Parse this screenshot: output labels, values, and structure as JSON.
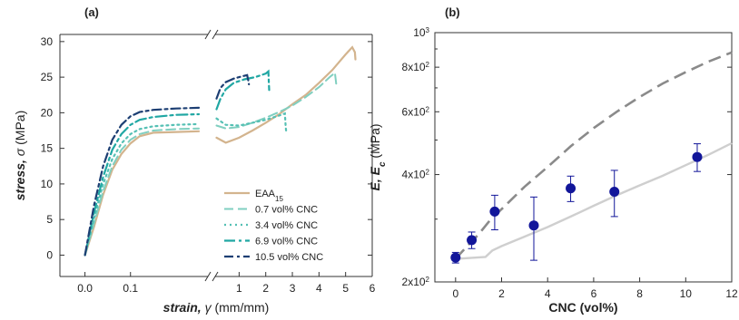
{
  "chart_data": [
    {
      "type": "line",
      "panel_label": "(a)",
      "ylabel_parts": [
        "stress, ",
        "σ",
        " (MPa)"
      ],
      "xlabel_parts": [
        "strain, ",
        "γ",
        " (mm/mm)"
      ],
      "ylim": [
        -3,
        31
      ],
      "yticks": [
        "0",
        "5",
        "10",
        "15",
        "20",
        "25",
        "30"
      ],
      "x_broken_axis": true,
      "xlim_left": [
        -0.055,
        0.27
      ],
      "xticks_left": [
        "0.0",
        "0.1"
      ],
      "xlim_right": [
        0.1,
        6
      ],
      "xticks_right": [
        "1",
        "2",
        "3",
        "4",
        "5",
        "6"
      ],
      "legend_position": "bottom-right",
      "colors": {
        "EAA": "#d3b48e",
        "c07": "#80cfc0",
        "c34": "#55c0b4",
        "c69": "#20a7a3",
        "c105": "#1d3f73"
      },
      "series": [
        {
          "name": "EAA",
          "name_sub": "15",
          "color_key": "EAA",
          "dash": "",
          "width": 2.2,
          "left": [
            [
              0.0,
              0
            ],
            [
              0.02,
              4
            ],
            [
              0.04,
              8.5
            ],
            [
              0.06,
              12
            ],
            [
              0.08,
              14.2
            ],
            [
              0.1,
              15.7
            ],
            [
              0.12,
              16.7
            ],
            [
              0.15,
              17.2
            ],
            [
              0.2,
              17.3
            ],
            [
              0.25,
              17.4
            ]
          ],
          "right": [
            [
              0.15,
              16.5
            ],
            [
              0.5,
              15.8
            ],
            [
              1.0,
              16.5
            ],
            [
              1.5,
              17.5
            ],
            [
              2.0,
              18.6
            ],
            [
              2.5,
              19.8
            ],
            [
              3.0,
              21.2
            ],
            [
              3.5,
              22.5
            ],
            [
              4.0,
              24.2
            ],
            [
              4.5,
              26.0
            ],
            [
              5.0,
              28.2
            ],
            [
              5.25,
              29.2
            ],
            [
              5.35,
              28.5
            ],
            [
              5.37,
              27.5
            ]
          ]
        },
        {
          "name": "0.7 vol% CNC",
          "color_key": "c07",
          "dash": "10,5",
          "width": 2,
          "left": [
            [
              0.0,
              0
            ],
            [
              0.02,
              4.5
            ],
            [
              0.04,
              9
            ],
            [
              0.06,
              12.5
            ],
            [
              0.08,
              14.8
            ],
            [
              0.1,
              16.2
            ],
            [
              0.12,
              17.0
            ],
            [
              0.15,
              17.5
            ],
            [
              0.2,
              17.7
            ],
            [
              0.25,
              17.8
            ]
          ],
          "right": [
            [
              0.15,
              18.2
            ],
            [
              0.5,
              17.8
            ],
            [
              1.0,
              18.0
            ],
            [
              1.5,
              18.6
            ],
            [
              2.0,
              19.3
            ],
            [
              2.5,
              20.1
            ],
            [
              3.0,
              21.0
            ],
            [
              3.5,
              22.2
            ],
            [
              4.0,
              23.6
            ],
            [
              4.4,
              25.0
            ],
            [
              4.6,
              25.6
            ],
            [
              4.65,
              24.0
            ],
            [
              4.67,
              23.5
            ]
          ]
        },
        {
          "name": "3.4 vol% CNC",
          "color_key": "c34",
          "dash": "2,4",
          "width": 2.2,
          "left": [
            [
              0.0,
              0
            ],
            [
              0.02,
              5.2
            ],
            [
              0.04,
              10
            ],
            [
              0.06,
              13.5
            ],
            [
              0.08,
              15.7
            ],
            [
              0.1,
              17.0
            ],
            [
              0.12,
              17.7
            ],
            [
              0.15,
              18.1
            ],
            [
              0.2,
              18.3
            ],
            [
              0.25,
              18.4
            ]
          ],
          "right": [
            [
              0.15,
              19.2
            ],
            [
              0.5,
              18.3
            ],
            [
              1.0,
              18.2
            ],
            [
              1.5,
              18.6
            ],
            [
              2.0,
              19.0
            ],
            [
              2.5,
              19.6
            ],
            [
              2.72,
              19.9
            ],
            [
              2.75,
              18.0
            ],
            [
              2.77,
              17.3
            ]
          ]
        },
        {
          "name": "6.9 vol% CNC",
          "color_key": "c69",
          "dash": "12,4,3,4",
          "width": 2.2,
          "left": [
            [
              0.0,
              0
            ],
            [
              0.02,
              6
            ],
            [
              0.04,
              11
            ],
            [
              0.06,
              14.8
            ],
            [
              0.08,
              17.0
            ],
            [
              0.1,
              18.3
            ],
            [
              0.12,
              19.0
            ],
            [
              0.15,
              19.4
            ],
            [
              0.2,
              19.7
            ],
            [
              0.25,
              19.8
            ]
          ],
          "right": [
            [
              0.15,
              20.5
            ],
            [
              0.3,
              22.0
            ],
            [
              0.5,
              23.3
            ],
            [
              0.8,
              24.2
            ],
            [
              1.2,
              24.7
            ],
            [
              1.6,
              25.0
            ],
            [
              2.0,
              25.5
            ],
            [
              2.1,
              25.8
            ],
            [
              2.12,
              24.0
            ],
            [
              2.13,
              23.2
            ]
          ]
        },
        {
          "name": "10.5 vol% CNC",
          "color_key": "c105",
          "dash": "10,4,3,4",
          "width": 2.2,
          "left": [
            [
              0.0,
              0
            ],
            [
              0.02,
              7
            ],
            [
              0.04,
              12.5
            ],
            [
              0.06,
              16.2
            ],
            [
              0.08,
              18.3
            ],
            [
              0.1,
              19.5
            ],
            [
              0.12,
              20.1
            ],
            [
              0.15,
              20.4
            ],
            [
              0.2,
              20.6
            ],
            [
              0.25,
              20.7
            ]
          ],
          "right": [
            [
              0.15,
              22.0
            ],
            [
              0.3,
              23.5
            ],
            [
              0.5,
              24.3
            ],
            [
              0.8,
              24.8
            ],
            [
              1.1,
              25.1
            ],
            [
              1.3,
              25.3
            ],
            [
              1.35,
              24.4
            ],
            [
              1.37,
              24.0
            ]
          ]
        }
      ]
    },
    {
      "type": "scatter",
      "panel_label": "(b)",
      "ylabel_parts": [
        "E, E",
        "c",
        " (MPa)"
      ],
      "xlabel": "CNC (vol%)",
      "xlim": [
        -0.9,
        12
      ],
      "xticks": [
        0,
        2,
        4,
        6,
        8,
        10,
        12
      ],
      "ylog": true,
      "ylim": [
        200,
        1000
      ],
      "yticks": [
        {
          "value": 200,
          "mant": "2x10",
          "exp": "2"
        },
        {
          "value": 400,
          "mant": "4x10",
          "exp": "2"
        },
        {
          "value": 600,
          "mant": "6x10",
          "exp": "2"
        },
        {
          "value": 800,
          "mant": "8x10",
          "exp": "2"
        },
        {
          "value": 1000,
          "mant": "10",
          "exp": "3"
        }
      ],
      "colors": {
        "points": "#12169a",
        "upper": "#8a8a8a",
        "lower": "#cfcfcf"
      },
      "points": [
        {
          "x": 0,
          "y": 234,
          "err": 8
        },
        {
          "x": 0.7,
          "y": 262,
          "err": 14
        },
        {
          "x": 1.7,
          "y": 315,
          "err": 35
        },
        {
          "x": 3.4,
          "y": 288,
          "err": 58
        },
        {
          "x": 5.0,
          "y": 366,
          "err": 30
        },
        {
          "x": 6.9,
          "y": 358,
          "err": 53
        },
        {
          "x": 10.5,
          "y": 448,
          "err": 40
        }
      ],
      "upper_curve": [
        [
          0,
          232
        ],
        [
          0.5,
          252
        ],
        [
          1,
          272
        ],
        [
          1.5,
          298
        ],
        [
          2,
          320
        ],
        [
          3,
          370
        ],
        [
          4,
          420
        ],
        [
          5,
          480
        ],
        [
          6,
          540
        ],
        [
          7,
          600
        ],
        [
          8,
          660
        ],
        [
          9,
          720
        ],
        [
          10,
          775
        ],
        [
          11,
          830
        ],
        [
          12,
          880
        ]
      ],
      "lower_curve": [
        [
          0,
          232
        ],
        [
          1.3,
          235
        ],
        [
          1.6,
          245
        ],
        [
          2,
          252
        ],
        [
          3,
          268
        ],
        [
          4,
          285
        ],
        [
          5,
          305
        ],
        [
          6,
          327
        ],
        [
          7,
          350
        ],
        [
          8,
          373
        ],
        [
          9,
          397
        ],
        [
          10,
          425
        ],
        [
          11,
          455
        ],
        [
          12,
          490
        ]
      ]
    }
  ]
}
